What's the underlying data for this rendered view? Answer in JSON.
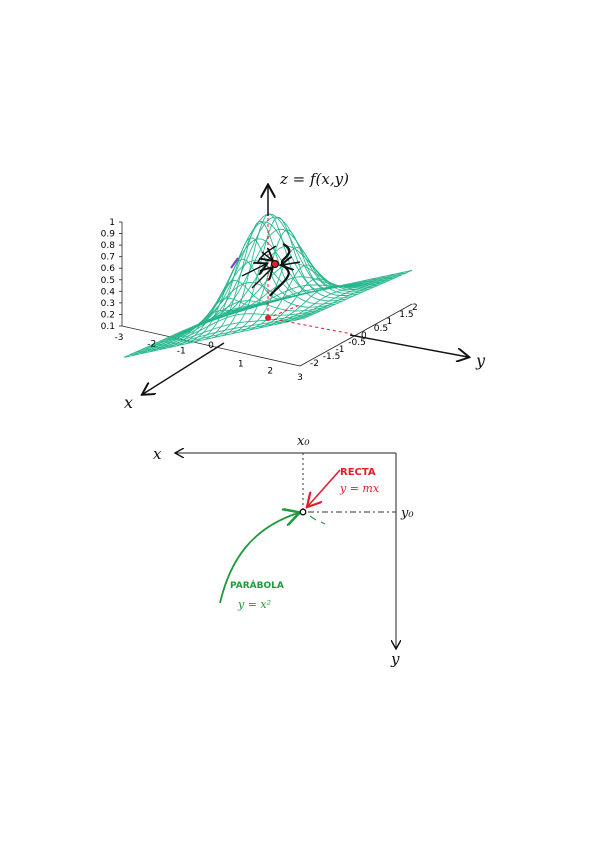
{
  "surface_plot": {
    "z_axis_label": "z = f(x,y)",
    "z_ticks": [
      "1",
      "0.9",
      "0.8",
      "0.7",
      "0.6",
      "0.5",
      "0.4",
      "0.3",
      "0.2",
      "0.1"
    ],
    "x_ticks": [
      "-3",
      "-2",
      "-1",
      "0",
      "1",
      "2",
      "3"
    ],
    "y_ticks": [
      "-2",
      "-1.5",
      "-1",
      "-0.5",
      "0",
      "0.5",
      "1",
      "1.5",
      "2"
    ],
    "x_arrow_label": "x",
    "y_arrow_label": "y",
    "mesh_color": "#23b58c",
    "accent_red": "#e0202a"
  },
  "plane_diagram": {
    "x_label": "x",
    "y_label": "y",
    "x0_label": "x₀",
    "y0_label": "y₀",
    "line_label": "RECTA",
    "line_eq": "y = mx",
    "parabola_label": "PARÁBOLA",
    "parabola_eq": "y = x²",
    "line_color": "#e0202a",
    "parabola_color": "#1f9a3c"
  }
}
